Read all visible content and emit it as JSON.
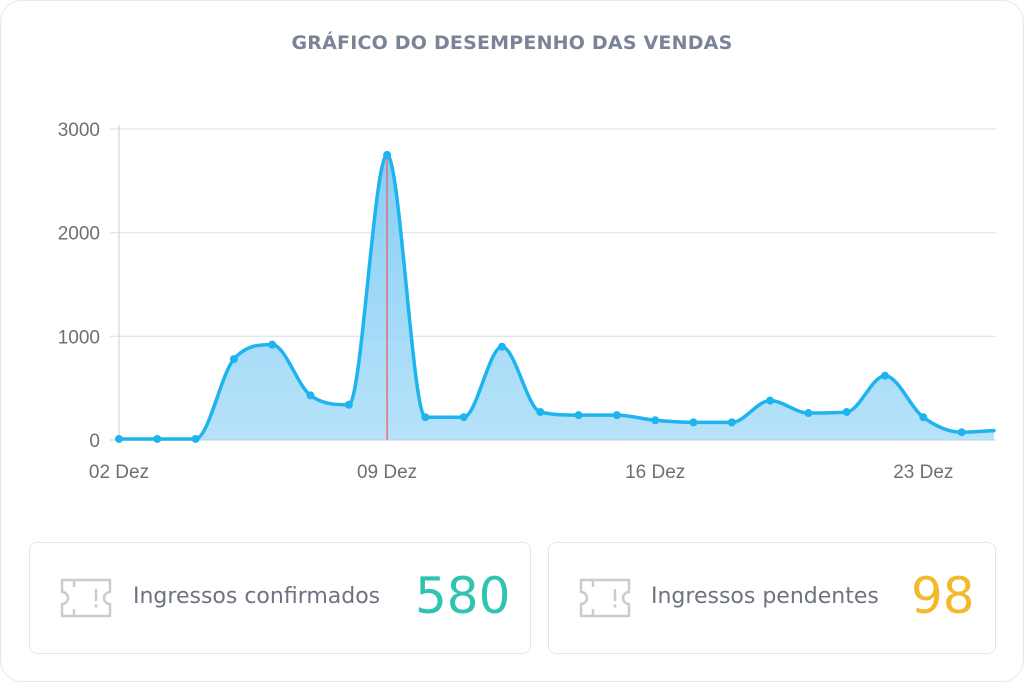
{
  "chart_data": {
    "type": "area",
    "title": "GRÁFICO DO DESEMPENHO DAS VENDAS",
    "xlabel": "",
    "ylabel": "",
    "x": [
      "02 Dez",
      "03 Dez",
      "04 Dez",
      "05 Dez",
      "06 Dez",
      "07 Dez",
      "08 Dez",
      "09 Dez",
      "10 Dez",
      "11 Dez",
      "12 Dez",
      "13 Dez",
      "14 Dez",
      "15 Dez",
      "16 Dez",
      "17 Dez",
      "18 Dez",
      "19 Dez",
      "20 Dez",
      "21 Dez",
      "22 Dez",
      "23 Dez",
      "24 Dez"
    ],
    "values": [
      10,
      10,
      10,
      780,
      920,
      430,
      340,
      2750,
      220,
      220,
      900,
      270,
      240,
      240,
      190,
      170,
      170,
      380,
      260,
      270,
      620,
      220,
      75
    ],
    "end_value": 90,
    "xticks": [
      "02 Dez",
      "09 Dez",
      "16 Dez",
      "23 Dez"
    ],
    "yticks": [
      0,
      1000,
      2000,
      3000
    ],
    "ylim": [
      0,
      3000
    ],
    "grid": true,
    "highlight": "09 Dez",
    "colors": {
      "line": "#1eb4ef",
      "fill": "#9fd8f7",
      "highlight": "#e86a7a",
      "grid": "#e0e3e7"
    }
  },
  "stats": [
    {
      "label": "Ingressos confirmados",
      "value": "580",
      "color": "#2fc4b1",
      "icon": "ticket-icon"
    },
    {
      "label": "Ingressos pendentes",
      "value": "98",
      "color": "#f4b92a",
      "icon": "ticket-icon"
    }
  ]
}
